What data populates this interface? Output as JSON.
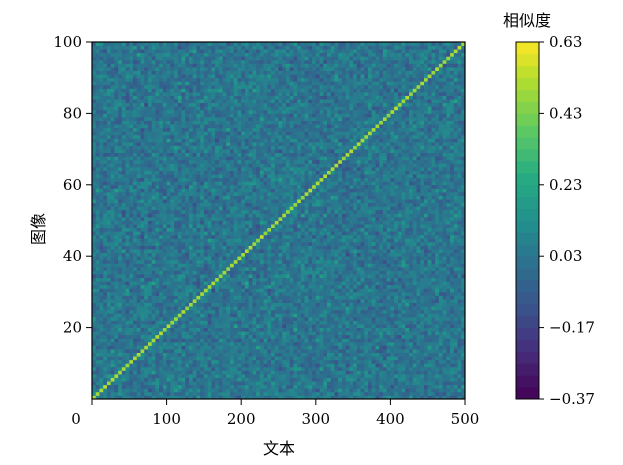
{
  "chart_data": {
    "type": "heatmap",
    "title": "",
    "xlabel": "文本",
    "ylabel": "图像",
    "colorbar_label": "相似度",
    "x_range": [
      0,
      500
    ],
    "y_range": [
      0,
      100
    ],
    "x_ticks": [
      0,
      100,
      200,
      300,
      400,
      500
    ],
    "y_ticks": [
      20,
      40,
      60,
      80,
      100
    ],
    "colorbar_range": [
      -0.37,
      0.63
    ],
    "colorbar_ticks": [
      0.63,
      0.43,
      0.23,
      0.03,
      -0.17,
      -0.37
    ],
    "colorbar_tick_labels": [
      "0.63",
      "0.43",
      "0.23",
      "0.03",
      "−0.17",
      "−0.37"
    ],
    "colormap": "viridis",
    "grid": false,
    "n_text": 500,
    "n_image": 100,
    "diagonal_value": 0.5,
    "background_mean": 0.03,
    "background_spread": 0.12,
    "diagonal_relation": "text_index = 5 × image_index"
  }
}
